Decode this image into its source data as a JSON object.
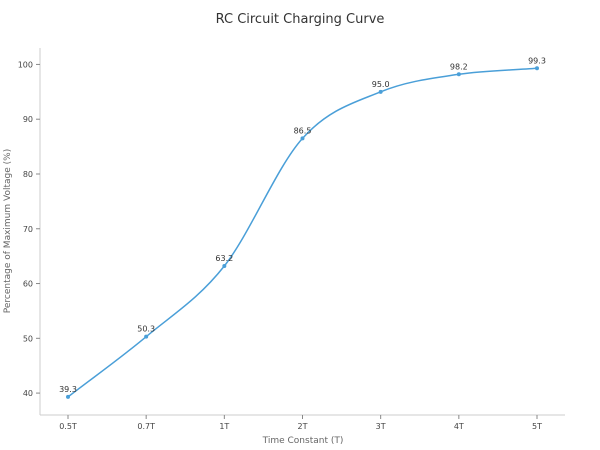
{
  "chart_data": {
    "type": "line",
    "title": "RC Circuit Charging Curve",
    "xlabel": "Time Constant (T)",
    "ylabel": "Percentage of Maximum Voltage (%)",
    "categories": [
      "0.5T",
      "0.7T",
      "1T",
      "2T",
      "3T",
      "4T",
      "5T"
    ],
    "series": [
      {
        "values": [
          39.3,
          50.3,
          63.2,
          86.5,
          95.0,
          98.2,
          99.3
        ]
      }
    ],
    "data_labels": [
      "39.3",
      "50.3",
      "63.2",
      "86.5",
      "95.0",
      "98.2",
      "99.3"
    ],
    "ylim": [
      36,
      103
    ],
    "yticks": [
      "40",
      "50",
      "60",
      "70",
      "80",
      "90",
      "100"
    ],
    "grid": false,
    "color": "#4a9fd8"
  }
}
